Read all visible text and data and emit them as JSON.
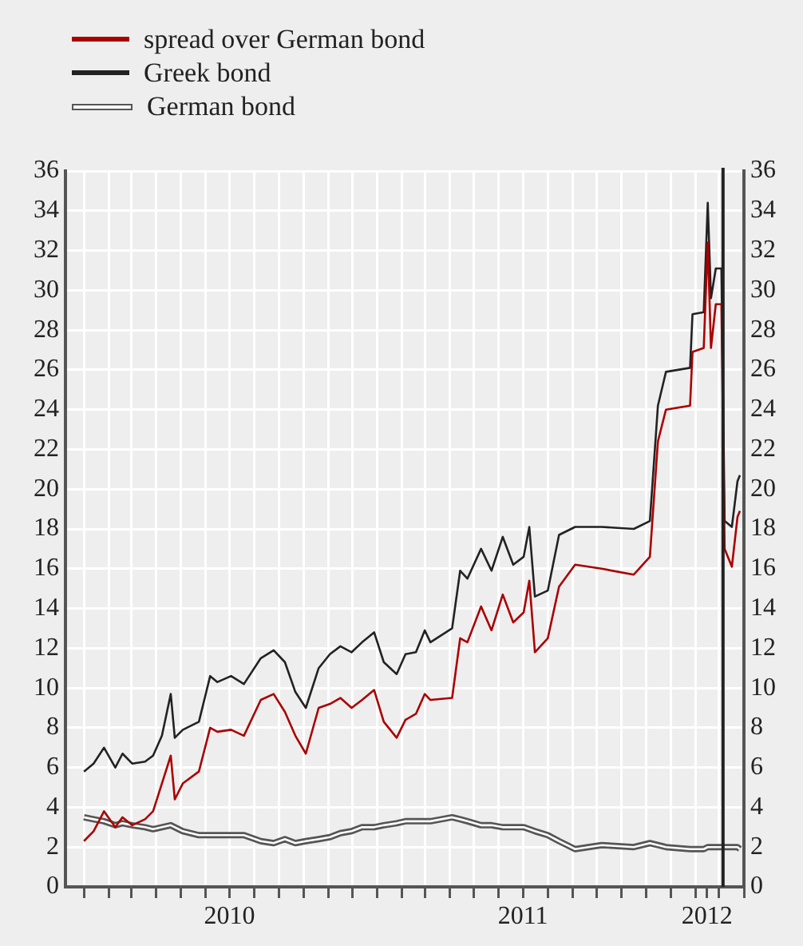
{
  "chart_data": {
    "type": "line",
    "legend": "top left",
    "grid": true,
    "marker": "none",
    "line_style": "solid",
    "x": [
      "2010-01-01",
      "2010-01-13",
      "2010-01-26",
      "2010-02-09",
      "2010-02-18",
      "2010-03-02",
      "2010-03-18",
      "2010-03-28",
      "2010-04-08",
      "2010-04-19",
      "2010-04-24",
      "2010-05-04",
      "2010-05-24",
      "2010-06-07",
      "2010-06-16",
      "2010-07-03",
      "2010-07-19",
      "2010-08-09",
      "2010-08-25",
      "2010-09-08",
      "2010-09-21",
      "2010-10-04",
      "2010-10-20",
      "2010-11-03",
      "2010-11-16",
      "2010-11-30",
      "2010-12-13",
      "2010-12-28",
      "2011-01-09",
      "2011-01-25",
      "2011-02-05",
      "2011-02-18",
      "2011-03-01",
      "2011-03-08",
      "2011-04-04",
      "2011-04-14",
      "2011-04-23",
      "2011-05-10",
      "2011-05-23",
      "2011-06-06",
      "2011-06-19",
      "2011-07-02",
      "2011-07-09",
      "2011-07-16",
      "2011-08-01",
      "2011-08-15",
      "2011-09-04",
      "2011-10-07",
      "2011-11-16",
      "2011-12-06",
      "2011-12-16",
      "2011-12-26",
      "2012-01-25",
      "2012-01-28",
      "2012-02-11",
      "2012-02-16",
      "2012-02-20",
      "2012-02-26",
      "2012-03-04",
      "2012-03-08",
      "2012-03-17",
      "2012-03-24",
      "2012-03-27"
    ],
    "series": [
      {
        "name": "spread over German bond",
        "color": "#aa0000",
        "values": [
          2.3,
          2.8,
          3.8,
          3.0,
          3.5,
          3.1,
          3.4,
          3.8,
          5.2,
          6.6,
          4.4,
          5.2,
          5.8,
          8.0,
          7.8,
          7.9,
          7.6,
          9.4,
          9.7,
          8.8,
          7.6,
          6.7,
          9.0,
          9.2,
          9.5,
          9.0,
          9.4,
          9.9,
          8.3,
          7.5,
          8.4,
          8.7,
          9.7,
          9.4,
          9.5,
          12.5,
          12.3,
          14.1,
          12.9,
          14.7,
          13.3,
          13.8,
          15.4,
          11.8,
          12.5,
          15.1,
          16.2,
          16.0,
          15.7,
          16.6,
          22.4,
          24.0,
          24.2,
          26.9,
          27.1,
          32.4,
          27.1,
          29.3,
          29.3,
          17.0,
          16.1,
          18.6,
          18.9
        ]
      },
      {
        "name": "Greek bond",
        "color": "#222222",
        "values": [
          5.8,
          6.2,
          7.0,
          6.0,
          6.7,
          6.2,
          6.3,
          6.6,
          7.6,
          9.7,
          7.5,
          7.9,
          8.3,
          10.6,
          10.3,
          10.6,
          10.2,
          11.5,
          11.9,
          11.3,
          9.8,
          9.0,
          11.0,
          11.7,
          12.1,
          11.8,
          12.3,
          12.8,
          11.3,
          10.7,
          11.7,
          11.8,
          12.9,
          12.3,
          13.0,
          15.9,
          15.5,
          17.0,
          15.9,
          17.6,
          16.2,
          16.6,
          18.1,
          14.6,
          14.9,
          17.7,
          18.1,
          18.1,
          18.0,
          18.4,
          24.2,
          25.9,
          26.1,
          28.8,
          28.9,
          34.4,
          29.6,
          31.1,
          31.1,
          18.4,
          18.1,
          20.4,
          20.7
        ]
      },
      {
        "name": "German bond",
        "color": "#ffffff",
        "values": [
          3.5,
          3.4,
          3.3,
          3.1,
          3.2,
          3.1,
          3.0,
          2.9,
          3.0,
          3.1,
          3.0,
          2.8,
          2.6,
          2.6,
          2.6,
          2.6,
          2.6,
          2.3,
          2.2,
          2.4,
          2.2,
          2.3,
          2.4,
          2.5,
          2.7,
          2.8,
          3.0,
          3.0,
          3.1,
          3.2,
          3.3,
          3.3,
          3.3,
          3.3,
          3.5,
          3.4,
          3.3,
          3.1,
          3.1,
          3.0,
          3.0,
          3.0,
          2.9,
          2.8,
          2.6,
          2.3,
          1.9,
          2.1,
          2.0,
          2.2,
          2.1,
          2.0,
          1.9,
          1.9,
          1.9,
          2.0,
          2.0,
          2.0,
          2.0,
          2.0,
          2.0,
          2.0,
          1.9
        ]
      }
    ],
    "xlim": [
      "2009-12-09",
      "2012-04-01"
    ],
    "xticks": [
      {
        "value": "2010-01-01",
        "label": null
      },
      {
        "value": "2010-02-01",
        "label": null
      },
      {
        "value": "2010-03-01",
        "label": null
      },
      {
        "value": "2010-04-01",
        "label": null
      },
      {
        "value": "2010-05-01",
        "label": null
      },
      {
        "value": "2010-06-01",
        "label": null
      },
      {
        "value": "2010-07-01",
        "label": "2010"
      },
      {
        "value": "2010-08-01",
        "label": null
      },
      {
        "value": "2010-09-01",
        "label": null
      },
      {
        "value": "2010-10-01",
        "label": null
      },
      {
        "value": "2010-11-01",
        "label": null
      },
      {
        "value": "2010-12-01",
        "label": null
      },
      {
        "value": "2011-01-01",
        "label": null
      },
      {
        "value": "2011-02-01",
        "label": null
      },
      {
        "value": "2011-03-01",
        "label": null
      },
      {
        "value": "2011-04-01",
        "label": null
      },
      {
        "value": "2011-05-01",
        "label": null
      },
      {
        "value": "2011-06-01",
        "label": null
      },
      {
        "value": "2011-07-01",
        "label": "2011"
      },
      {
        "value": "2011-08-01",
        "label": null
      },
      {
        "value": "2011-09-01",
        "label": null
      },
      {
        "value": "2011-10-01",
        "label": null
      },
      {
        "value": "2011-11-01",
        "label": null
      },
      {
        "value": "2011-12-01",
        "label": null
      },
      {
        "value": "2012-01-01",
        "label": null
      },
      {
        "value": "2012-02-01",
        "label": null
      },
      {
        "value": "2012-02-15",
        "label": "2012"
      },
      {
        "value": "2012-03-01",
        "label": null
      },
      {
        "value": "2012-04-01",
        "label": null
      }
    ],
    "ylim": [
      0,
      36
    ],
    "yticks": [
      0,
      2,
      4,
      6,
      8,
      10,
      12,
      14,
      16,
      18,
      20,
      22,
      24,
      26,
      28,
      30,
      32,
      34,
      36
    ],
    "y2lim": [
      0,
      36
    ],
    "y2ticks": [
      0,
      2,
      4,
      6,
      8,
      10,
      12,
      14,
      16,
      18,
      20,
      22,
      24,
      26,
      28,
      30,
      32,
      34,
      36
    ],
    "ref_lines": [
      {
        "axis": "x",
        "value": "2012-03-06",
        "color": "#222222"
      }
    ]
  }
}
